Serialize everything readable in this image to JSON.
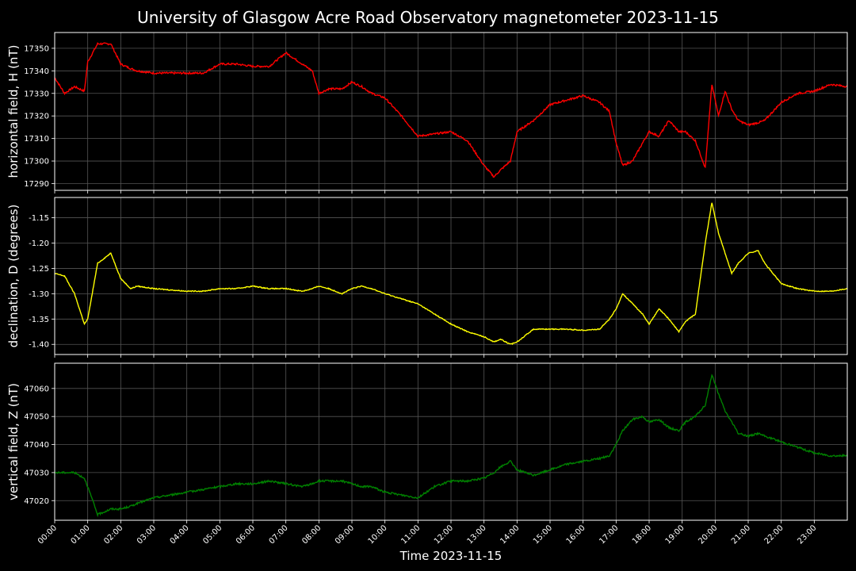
{
  "title": "University of Glasgow Acre Road Observatory magnetometer 2023-11-15",
  "xlabel": "Time 2023-11-15",
  "colors": {
    "background": "#000000",
    "grid": "#555555",
    "H": "#ff0000",
    "D": "#ffff00",
    "Z": "#008000"
  },
  "chart_data": [
    {
      "type": "line",
      "ylabel": "horizontal field, H (nT)",
      "x_hours": [
        0,
        0.3,
        0.6,
        0.9,
        1.0,
        1.3,
        1.7,
        2.0,
        2.3,
        2.5,
        3.0,
        4.0,
        4.5,
        5.0,
        5.5,
        6.0,
        6.5,
        7.0,
        7.5,
        7.8,
        8.0,
        8.3,
        8.7,
        9.0,
        9.3,
        9.6,
        10.0,
        10.5,
        11.0,
        11.5,
        12.0,
        12.5,
        13.0,
        13.3,
        13.5,
        13.8,
        14.0,
        14.5,
        15.0,
        15.5,
        16.0,
        16.5,
        16.8,
        17.0,
        17.2,
        17.5,
        17.8,
        18.0,
        18.3,
        18.6,
        18.9,
        19.1,
        19.4,
        19.7,
        19.9,
        20.1,
        20.3,
        20.5,
        20.7,
        21.0,
        21.3,
        21.5,
        22.0,
        22.5,
        23.0,
        23.5,
        24.0
      ],
      "values": [
        17337,
        17330,
        17333,
        17331,
        17344,
        17352,
        17352,
        17343,
        17341,
        17340,
        17339,
        17339,
        17339,
        17343,
        17343,
        17342,
        17342,
        17348,
        17343,
        17340,
        17330,
        17332,
        17332,
        17335,
        17333,
        17330,
        17328,
        17320,
        17311,
        17312,
        17313,
        17309,
        17298,
        17293,
        17296,
        17300,
        17313,
        17318,
        17325,
        17327,
        17329,
        17326,
        17322,
        17308,
        17298,
        17300,
        17308,
        17313,
        17311,
        17318,
        17313,
        17313,
        17309,
        17297,
        17334,
        17320,
        17331,
        17323,
        17318,
        17316,
        17317,
        17318,
        17326,
        17330,
        17331,
        17334,
        17333
      ],
      "yticks": [
        17290,
        17300,
        17310,
        17320,
        17330,
        17340,
        17350
      ],
      "ylim": [
        17287,
        17357
      ]
    },
    {
      "type": "line",
      "ylabel": "declination, D (degrees)",
      "x_hours": [
        0,
        0.3,
        0.6,
        0.9,
        1.0,
        1.3,
        1.7,
        2.0,
        2.3,
        2.5,
        3.0,
        4.0,
        4.5,
        5.0,
        5.5,
        6.0,
        6.5,
        7.0,
        7.5,
        7.8,
        8.0,
        8.3,
        8.7,
        9.0,
        9.3,
        9.6,
        10.0,
        10.5,
        11.0,
        11.5,
        12.0,
        12.5,
        13.0,
        13.3,
        13.5,
        13.8,
        14.0,
        14.5,
        15.0,
        15.5,
        16.0,
        16.5,
        16.8,
        17.0,
        17.2,
        17.5,
        17.8,
        18.0,
        18.3,
        18.6,
        18.9,
        19.1,
        19.4,
        19.7,
        19.9,
        20.1,
        20.3,
        20.5,
        20.7,
        21.0,
        21.3,
        21.5,
        22.0,
        22.5,
        23.0,
        23.5,
        24.0
      ],
      "values": [
        -1.26,
        -1.265,
        -1.3,
        -1.36,
        -1.35,
        -1.24,
        -1.22,
        -1.27,
        -1.29,
        -1.285,
        -1.29,
        -1.295,
        -1.295,
        -1.29,
        -1.29,
        -1.285,
        -1.29,
        -1.29,
        -1.295,
        -1.29,
        -1.285,
        -1.29,
        -1.3,
        -1.29,
        -1.285,
        -1.29,
        -1.3,
        -1.31,
        -1.32,
        -1.34,
        -1.36,
        -1.375,
        -1.385,
        -1.395,
        -1.39,
        -1.4,
        -1.395,
        -1.37,
        -1.37,
        -1.37,
        -1.372,
        -1.37,
        -1.35,
        -1.33,
        -1.3,
        -1.32,
        -1.34,
        -1.36,
        -1.33,
        -1.35,
        -1.375,
        -1.355,
        -1.34,
        -1.2,
        -1.12,
        -1.18,
        -1.22,
        -1.26,
        -1.24,
        -1.22,
        -1.215,
        -1.24,
        -1.28,
        -1.29,
        -1.295,
        -1.295,
        -1.29
      ],
      "yticks": [
        -1.4,
        -1.35,
        -1.3,
        -1.25,
        -1.2,
        -1.15
      ],
      "ylim": [
        -1.42,
        -1.11
      ]
    },
    {
      "type": "line",
      "ylabel": "vertical field, Z (nT)",
      "x_hours": [
        0,
        0.3,
        0.6,
        0.9,
        1.0,
        1.3,
        1.7,
        2.0,
        2.3,
        2.5,
        3.0,
        4.0,
        4.5,
        5.0,
        5.5,
        6.0,
        6.5,
        7.0,
        7.5,
        7.8,
        8.0,
        8.3,
        8.7,
        9.0,
        9.3,
        9.6,
        10.0,
        10.5,
        11.0,
        11.5,
        12.0,
        12.5,
        13.0,
        13.3,
        13.5,
        13.8,
        14.0,
        14.5,
        15.0,
        15.5,
        16.0,
        16.5,
        16.8,
        17.0,
        17.2,
        17.5,
        17.8,
        18.0,
        18.3,
        18.6,
        18.9,
        19.1,
        19.4,
        19.7,
        19.9,
        20.1,
        20.3,
        20.5,
        20.7,
        21.0,
        21.3,
        21.5,
        22.0,
        22.5,
        23.0,
        23.5,
        24.0
      ],
      "values": [
        47030,
        47030,
        47030,
        47028,
        47025,
        47015,
        47017,
        47017,
        47018,
        47019,
        47021,
        47023,
        47024,
        47025,
        47026,
        47026,
        47027,
        47026,
        47025,
        47026,
        47027,
        47027,
        47027,
        47026,
        47025,
        47025,
        47023,
        47022,
        47021,
        47025,
        47027,
        47027,
        47028,
        47030,
        47032,
        47034,
        47031,
        47029,
        47031,
        47033,
        47034,
        47035,
        47036,
        47040,
        47045,
        47049,
        47050,
        47048,
        47049,
        47046,
        47045,
        47048,
        47050,
        47054,
        47065,
        47058,
        47052,
        47048,
        47044,
        47043,
        47044,
        47043,
        47041,
        47039,
        47037,
        47036,
        47036
      ],
      "yticks": [
        47020,
        47030,
        47040,
        47050,
        47060
      ],
      "ylim": [
        47013,
        47069
      ]
    }
  ],
  "xticks": [
    "00:00",
    "01:00",
    "02:00",
    "03:00",
    "04:00",
    "05:00",
    "06:00",
    "07:00",
    "08:00",
    "09:00",
    "10:00",
    "11:00",
    "12:00",
    "13:00",
    "14:00",
    "15:00",
    "16:00",
    "17:00",
    "18:00",
    "19:00",
    "20:00",
    "21:00",
    "22:00",
    "23:00"
  ]
}
